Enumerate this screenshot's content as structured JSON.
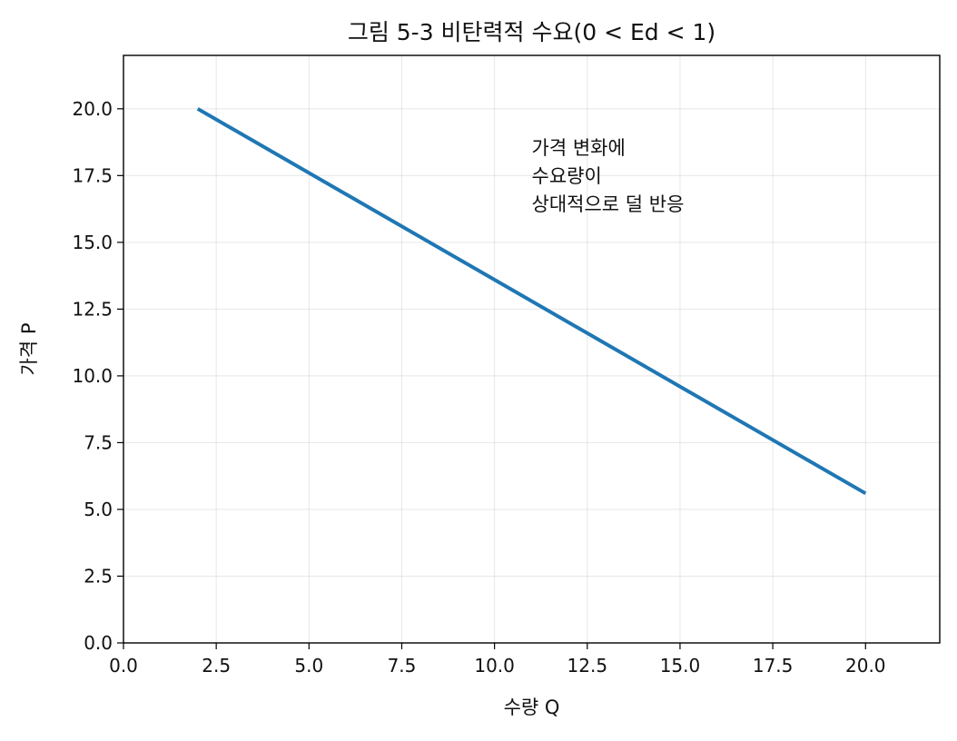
{
  "chart_data": {
    "type": "line",
    "title": "그림 5-3  비탄력적 수요(0 < Ed < 1)",
    "xlabel": "수량 Q",
    "ylabel": "가격 P",
    "xlim": [
      0,
      22
    ],
    "ylim": [
      0,
      22
    ],
    "x_ticks": [
      0.0,
      2.5,
      5.0,
      7.5,
      10.0,
      12.5,
      15.0,
      17.5,
      20.0
    ],
    "y_ticks": [
      0.0,
      2.5,
      5.0,
      7.5,
      10.0,
      12.5,
      15.0,
      17.5,
      20.0
    ],
    "x_tick_labels": [
      "0.0",
      "2.5",
      "5.0",
      "7.5",
      "10.0",
      "12.5",
      "15.0",
      "17.5",
      "20.0"
    ],
    "y_tick_labels": [
      "0.0",
      "2.5",
      "5.0",
      "7.5",
      "10.0",
      "12.5",
      "15.0",
      "17.5",
      "20.0"
    ],
    "grid": true,
    "series": [
      {
        "color": "#1f77b4",
        "x": [
          2,
          20
        ],
        "y": [
          20,
          5.6
        ]
      }
    ],
    "annotation": {
      "x": 11,
      "y": 18.3,
      "lines": [
        "가격 변화에",
        "수요량이",
        "상대적으로 덜 반응"
      ]
    }
  }
}
